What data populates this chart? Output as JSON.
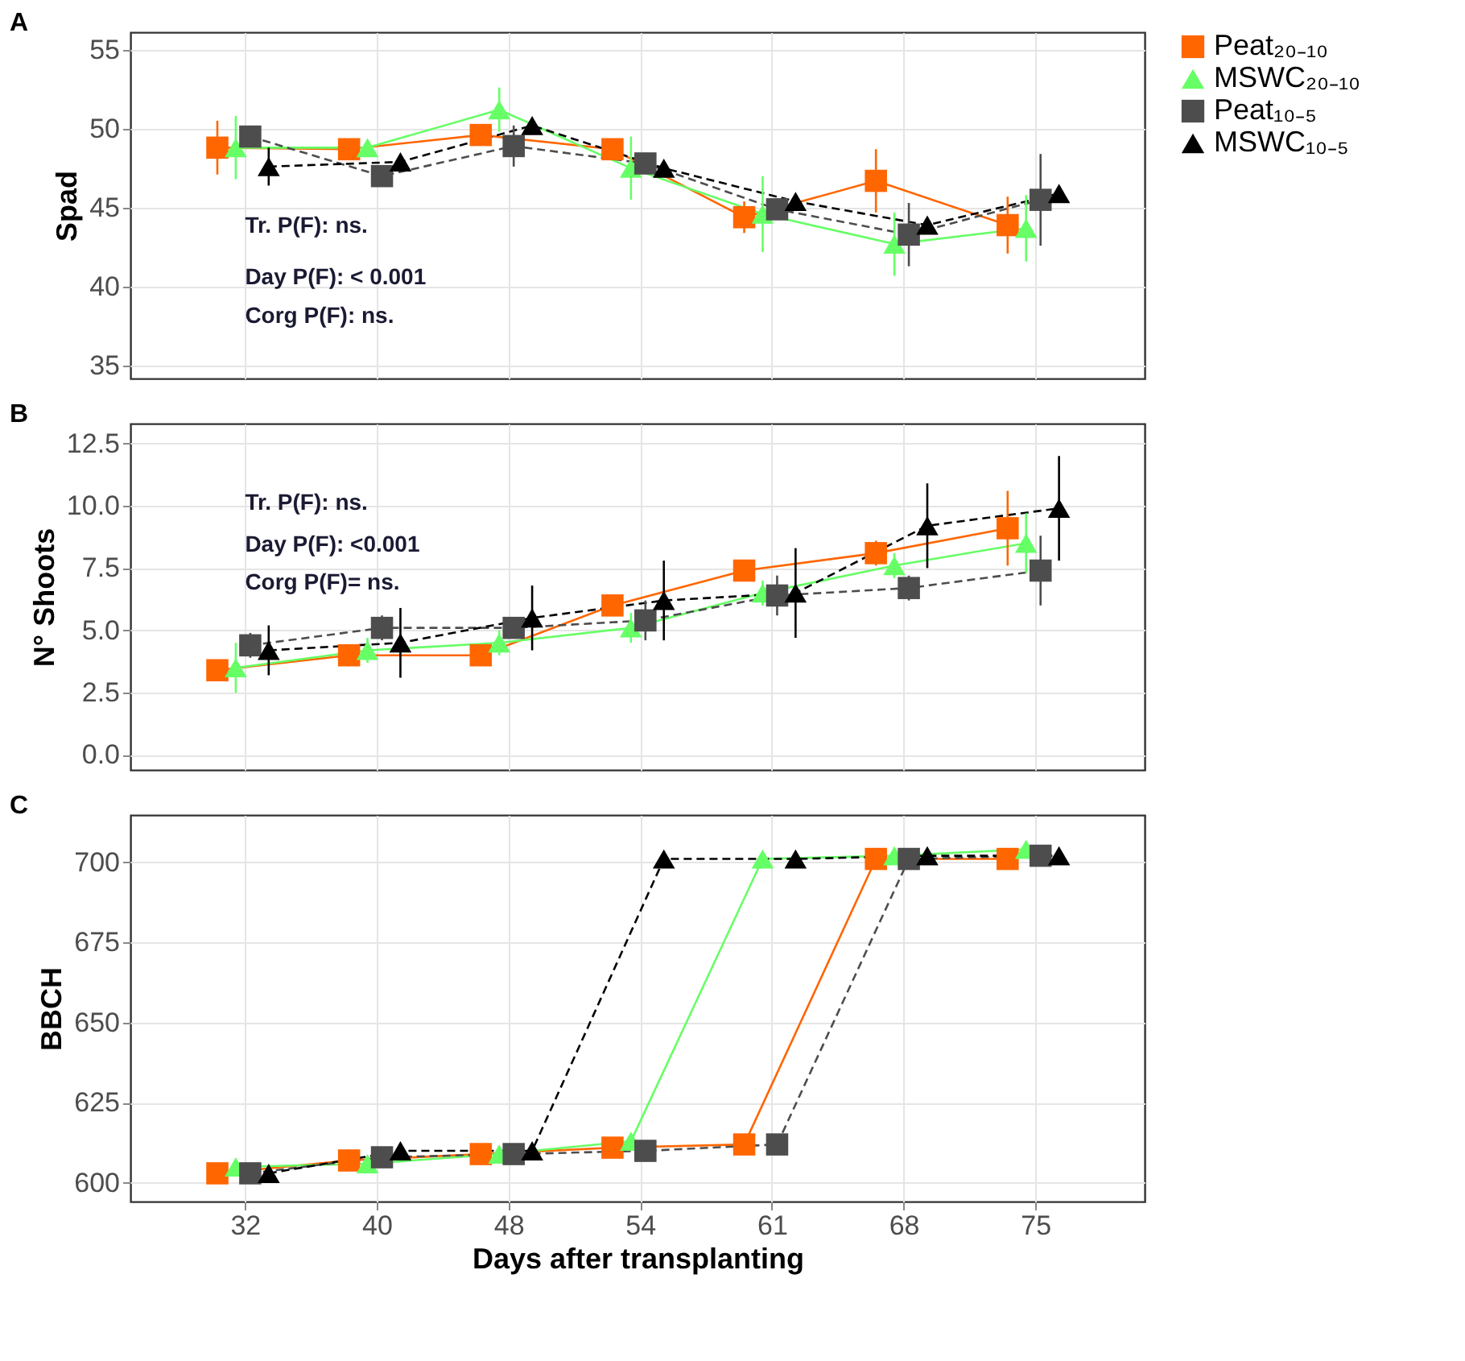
{
  "chart_data": [
    {
      "type": "line",
      "title": "A",
      "ylabel": "Spad",
      "categories": [
        "32",
        "40",
        "48",
        "54",
        "61",
        "68",
        "75"
      ],
      "ylim": [
        34.2,
        56.1
      ],
      "yticks": [
        35,
        40,
        45,
        50,
        55
      ],
      "grid": true,
      "legend": "right",
      "tick_labels": "y",
      "annotations": [
        "Tr. P(F): ns.",
        "Day P(F): < 0.001",
        "Corg P(F): ns."
      ],
      "series": [
        {
          "name": "Peat₂₀₋₁₀",
          "color": "#ff6600",
          "marker": "square",
          "line_style": "solid",
          "values": [
            48.8,
            48.7,
            49.6,
            48.7,
            44.4,
            46.7,
            43.9
          ],
          "errors": [
            1.7,
            0.5,
            0.5,
            0.3,
            1.0,
            2.0,
            1.8
          ]
        },
        {
          "name": "MSWC₂₀₋₁₀",
          "color": "#66ff66",
          "marker": "triangle",
          "line_style": "solid",
          "values": [
            48.8,
            48.8,
            51.2,
            47.5,
            44.6,
            42.7,
            43.7
          ],
          "errors": [
            2.0,
            0.3,
            1.4,
            2.0,
            2.4,
            2.0,
            2.1
          ]
        },
        {
          "name": "Peat₁₀₋₅",
          "color": "#4d4d4d",
          "marker": "square",
          "line_style": "dashed",
          "values": [
            49.5,
            47.0,
            48.9,
            47.8,
            44.9,
            43.3,
            45.5
          ],
          "errors": [
            0.4,
            0.3,
            1.3,
            0.4,
            0.5,
            2.0,
            2.9
          ]
        },
        {
          "name": "MSWC₁₀₋₅",
          "color": "#000000",
          "marker": "triangle",
          "line_style": "dashed",
          "values": [
            47.6,
            47.9,
            50.2,
            47.5,
            45.4,
            43.9,
            45.9
          ],
          "errors": [
            1.2,
            0.3,
            0.3,
            0.3,
            0.3,
            0.3,
            0.3
          ]
        }
      ]
    },
    {
      "type": "line",
      "title": "B",
      "ylabel": "N° Shoots",
      "categories": [
        "32",
        "40",
        "48",
        "54",
        "61",
        "68",
        "75"
      ],
      "ylim": [
        -0.6,
        13.3
      ],
      "yticks": [
        {
          "value": 0,
          "label": "0.0"
        },
        2.5,
        {
          "value": 5,
          "label": "5.0"
        },
        7.5,
        {
          "value": 10,
          "label": "10.0"
        },
        12.5
      ],
      "grid": true,
      "legend": "right",
      "tick_labels": "y",
      "annotations": [
        "Tr. P(F): ns.",
        "Day P(F): <0.001",
        "Corg P(F)= ns."
      ],
      "series": [
        {
          "name": "Peat₂₀₋₁₀",
          "color": "#ff6600",
          "marker": "square",
          "line_style": "solid",
          "values": [
            3.4,
            4.0,
            4.0,
            6.0,
            7.4,
            8.1,
            9.1
          ],
          "errors": [
            null,
            null,
            null,
            0.4,
            null,
            0.5,
            1.5
          ]
        },
        {
          "name": "MSWC₂₀₋₁₀",
          "color": "#66ff66",
          "marker": "triangle",
          "line_style": "solid",
          "values": [
            3.5,
            4.2,
            4.5,
            5.1,
            6.5,
            7.6,
            8.5
          ],
          "errors": [
            1.0,
            0.5,
            0.5,
            0.6,
            0.5,
            0.5,
            1.2
          ]
        },
        {
          "name": "Peat₁₀₋₅",
          "color": "#4d4d4d",
          "marker": "square",
          "line_style": "dashed",
          "values": [
            4.4,
            5.1,
            5.1,
            5.4,
            6.4,
            6.7,
            7.4
          ],
          "errors": [
            0.5,
            0.5,
            0.4,
            0.8,
            0.8,
            0.5,
            1.4
          ]
        },
        {
          "name": "MSWC₁₀₋₅",
          "color": "#000000",
          "marker": "triangle",
          "line_style": "dashed",
          "values": [
            4.2,
            4.5,
            5.5,
            6.2,
            6.5,
            9.2,
            9.9
          ],
          "errors": [
            1.0,
            1.4,
            1.3,
            1.6,
            1.8,
            1.7,
            2.1
          ]
        }
      ]
    },
    {
      "type": "line",
      "title": "C",
      "ylabel": "BBCH",
      "xlabel": "Days after transplanting",
      "categories": [
        "32",
        "40",
        "48",
        "54",
        "61",
        "68",
        "75"
      ],
      "ylim": [
        594.2,
        714.7
      ],
      "yticks": [
        600,
        625,
        650,
        675,
        700
      ],
      "grid": true,
      "legend": "right",
      "series": [
        {
          "name": "Peat₂₀₋₁₀",
          "color": "#ff6600",
          "marker": "square",
          "line_style": "solid",
          "values": [
            603,
            607,
            609,
            611,
            612,
            701,
            701
          ]
        },
        {
          "name": "MSWC₂₀₋₁₀",
          "color": "#66ff66",
          "marker": "triangle",
          "line_style": "solid",
          "values": [
            605,
            606,
            609,
            613,
            701,
            702,
            704
          ]
        },
        {
          "name": "Peat₁₀₋₅",
          "color": "#4d4d4d",
          "marker": "square",
          "line_style": "dashed",
          "values": [
            603,
            608,
            609,
            610,
            612,
            701,
            702
          ]
        },
        {
          "name": "MSWC₁₀₋₅",
          "color": "#000000",
          "marker": "triangle",
          "line_style": "dashed",
          "values": [
            603,
            610,
            610,
            701,
            701,
            702,
            702
          ]
        }
      ]
    }
  ]
}
